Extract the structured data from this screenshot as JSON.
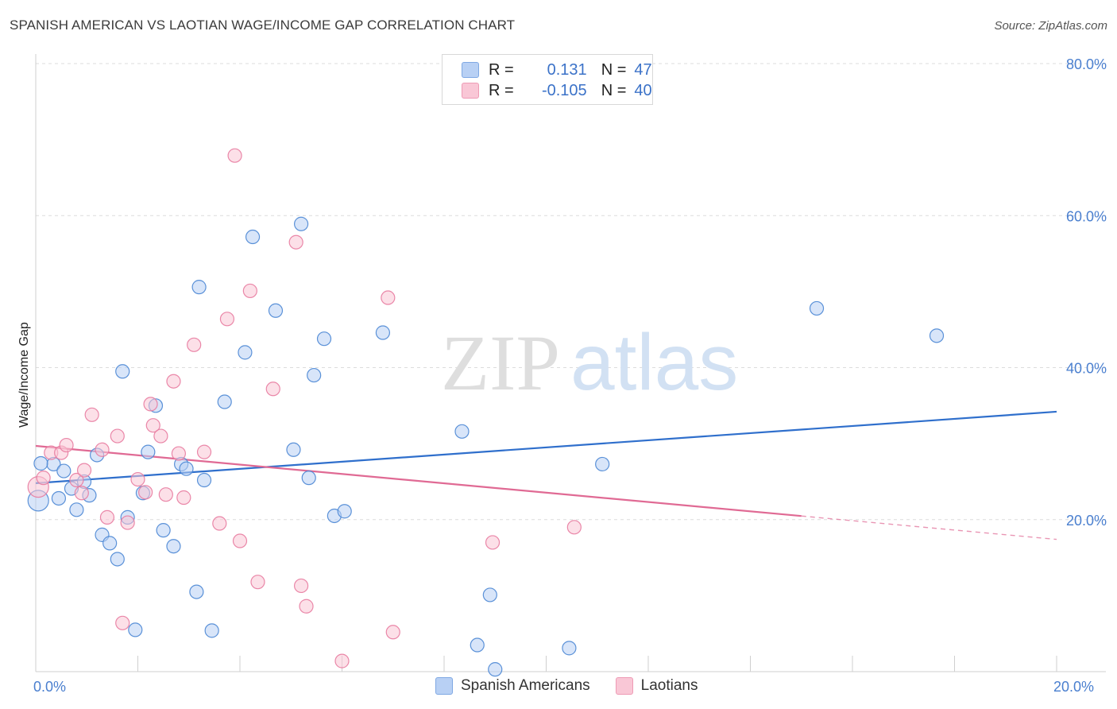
{
  "title": "SPANISH AMERICAN VS LAOTIAN WAGE/INCOME GAP CORRELATION CHART",
  "source": "Source: ZipAtlas.com",
  "watermark": {
    "part1": "ZIP",
    "part2": "atlas"
  },
  "legend": {
    "rows": [
      {
        "r_label": "R =",
        "r_value": "0.131",
        "n_label": "N =",
        "n_value": "47",
        "color": "#b8d0f4",
        "border": "#7fa8e3"
      },
      {
        "r_label": "R =",
        "r_value": "-0.105",
        "n_label": "N =",
        "n_value": "40",
        "color": "#f9c7d6",
        "border": "#ee9bb5"
      }
    ]
  },
  "bottom_legend": [
    {
      "label": "Spanish Americans",
      "color": "#b8d0f4",
      "border": "#7fa8e3"
    },
    {
      "label": "Laotians",
      "color": "#f9c7d6",
      "border": "#ee9bb5"
    }
  ],
  "chart_data": {
    "type": "scatter",
    "ylabel": "Wage/Income Gap",
    "xlim": [
      0,
      20
    ],
    "ylim": [
      0,
      80
    ],
    "y_ticks": [
      {
        "v": 20,
        "label": "20.0%"
      },
      {
        "v": 40,
        "label": "40.0%"
      },
      {
        "v": 60,
        "label": "60.0%"
      },
      {
        "v": 80,
        "label": "80.0%"
      }
    ],
    "x_tick_labels": [
      {
        "v": 0,
        "label": "0.0%"
      },
      {
        "v": 20,
        "label": "20.0%"
      }
    ],
    "x_minor_ticks": [
      0,
      2,
      4,
      6,
      8,
      10,
      12,
      14,
      16,
      18,
      20
    ],
    "grid": "horizontal dashed",
    "series": [
      {
        "name": "Spanish Americans",
        "color": "#4a86d4",
        "fill": "#b8d0f4",
        "trend": {
          "x0": 0,
          "y0": 24.8,
          "x1": 20,
          "y1": 34.2,
          "dash_from": null,
          "line_color": "#2f6fcc"
        },
        "points": [
          [
            0.05,
            22.5
          ],
          [
            0.35,
            27.3
          ],
          [
            0.45,
            22.8
          ],
          [
            0.55,
            26.4
          ],
          [
            0.7,
            24.1
          ],
          [
            0.8,
            21.3
          ],
          [
            0.95,
            25.0
          ],
          [
            1.05,
            23.2
          ],
          [
            1.2,
            28.5
          ],
          [
            1.3,
            18.0
          ],
          [
            1.45,
            16.9
          ],
          [
            1.6,
            14.8
          ],
          [
            1.7,
            39.5
          ],
          [
            1.8,
            20.3
          ],
          [
            1.95,
            5.5
          ],
          [
            2.1,
            23.5
          ],
          [
            2.2,
            28.9
          ],
          [
            2.35,
            35.0
          ],
          [
            2.5,
            18.6
          ],
          [
            2.7,
            16.5
          ],
          [
            2.85,
            27.3
          ],
          [
            2.95,
            26.7
          ],
          [
            3.15,
            10.5
          ],
          [
            3.2,
            50.6
          ],
          [
            3.3,
            25.2
          ],
          [
            3.45,
            5.4
          ],
          [
            3.7,
            35.5
          ],
          [
            4.1,
            42.0
          ],
          [
            4.25,
            57.2
          ],
          [
            4.7,
            47.5
          ],
          [
            5.05,
            29.2
          ],
          [
            5.2,
            58.9
          ],
          [
            5.35,
            25.5
          ],
          [
            5.45,
            39.0
          ],
          [
            5.65,
            43.8
          ],
          [
            5.85,
            20.5
          ],
          [
            6.05,
            21.1
          ],
          [
            6.8,
            44.6
          ],
          [
            8.35,
            31.6
          ],
          [
            8.65,
            3.5
          ],
          [
            8.9,
            10.1
          ],
          [
            9.0,
            0.3
          ],
          [
            10.45,
            3.1
          ],
          [
            11.1,
            27.3
          ],
          [
            15.3,
            47.8
          ],
          [
            17.65,
            44.2
          ],
          [
            0.1,
            27.4
          ]
        ]
      },
      {
        "name": "Laotians",
        "color": "#e87ba0",
        "fill": "#f9c7d6",
        "trend": {
          "x0": 0,
          "y0": 29.7,
          "x1": 20,
          "y1": 17.4,
          "dash_from": 15.0,
          "line_color": "#e06a94"
        },
        "points": [
          [
            0.05,
            24.3
          ],
          [
            0.15,
            25.5
          ],
          [
            0.3,
            28.8
          ],
          [
            0.5,
            28.8
          ],
          [
            0.6,
            29.8
          ],
          [
            0.8,
            25.2
          ],
          [
            0.9,
            23.5
          ],
          [
            0.95,
            26.5
          ],
          [
            1.1,
            33.8
          ],
          [
            1.3,
            29.2
          ],
          [
            1.4,
            20.3
          ],
          [
            1.6,
            31.0
          ],
          [
            1.7,
            6.4
          ],
          [
            1.8,
            19.6
          ],
          [
            2.0,
            25.3
          ],
          [
            2.15,
            23.6
          ],
          [
            2.25,
            35.2
          ],
          [
            2.3,
            32.4
          ],
          [
            2.45,
            31.0
          ],
          [
            2.55,
            23.3
          ],
          [
            2.7,
            38.2
          ],
          [
            2.8,
            28.7
          ],
          [
            2.9,
            22.9
          ],
          [
            3.1,
            43.0
          ],
          [
            3.3,
            28.9
          ],
          [
            3.6,
            19.5
          ],
          [
            3.75,
            46.4
          ],
          [
            3.9,
            67.9
          ],
          [
            4.0,
            17.2
          ],
          [
            4.2,
            50.1
          ],
          [
            4.35,
            11.8
          ],
          [
            4.65,
            37.2
          ],
          [
            5.1,
            56.5
          ],
          [
            5.2,
            11.3
          ],
          [
            5.3,
            8.6
          ],
          [
            6.0,
            1.4
          ],
          [
            6.9,
            49.2
          ],
          [
            7.0,
            5.2
          ],
          [
            8.95,
            17.0
          ],
          [
            10.55,
            19.0
          ]
        ]
      }
    ]
  }
}
